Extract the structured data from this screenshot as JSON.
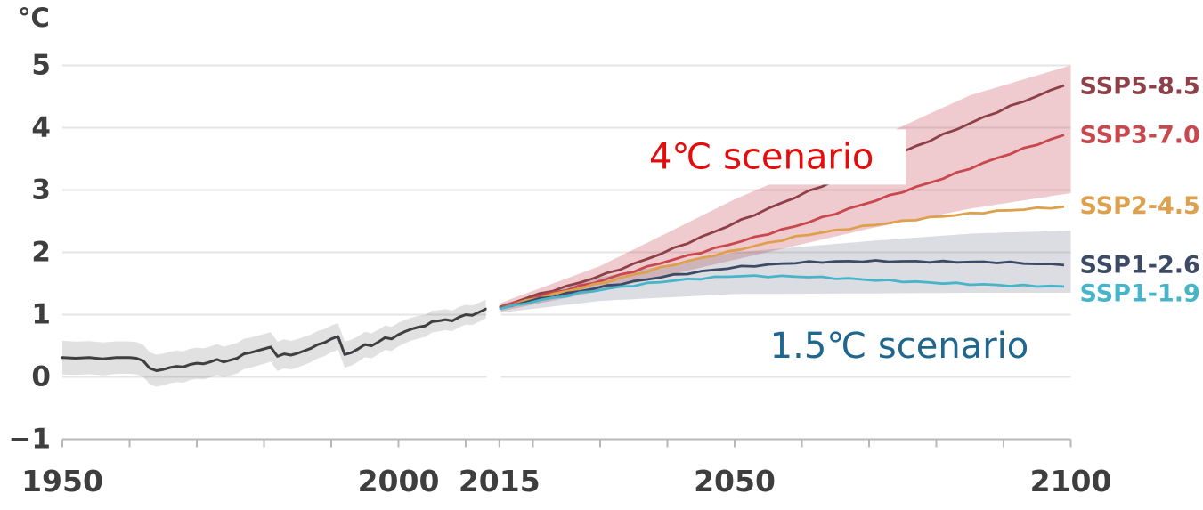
{
  "chart_data": {
    "type": "line",
    "title": "",
    "unit_label": "°C",
    "xlabel": "",
    "ylabel": "°C",
    "legend_position": "right-of-lines",
    "grid": "horizontal",
    "x_axis": {
      "min": 1950,
      "max": 2100,
      "tick_step_years": 10,
      "extra_tick_years": [
        2015
      ],
      "labeled_years": [
        1950,
        2000,
        2015,
        2050,
        2100
      ]
    },
    "y_axis": {
      "min": -1,
      "max": 5,
      "ticks": [
        5,
        4,
        3,
        2,
        1,
        0,
        -1
      ]
    },
    "historical": {
      "name": "observed-warming",
      "color": "#3f3f42",
      "band_color": "rgba(70,70,70,0.16)",
      "points": [
        [
          1950,
          0.31
        ],
        [
          1952,
          0.3
        ],
        [
          1954,
          0.31
        ],
        [
          1956,
          0.29
        ],
        [
          1958,
          0.31
        ],
        [
          1960,
          0.31
        ],
        [
          1961,
          0.3
        ],
        [
          1962,
          0.26
        ],
        [
          1963,
          0.14
        ],
        [
          1964,
          0.1
        ],
        [
          1965,
          0.12
        ],
        [
          1966,
          0.15
        ],
        [
          1967,
          0.17
        ],
        [
          1968,
          0.16
        ],
        [
          1969,
          0.2
        ],
        [
          1970,
          0.22
        ],
        [
          1971,
          0.21
        ],
        [
          1972,
          0.24
        ],
        [
          1973,
          0.28
        ],
        [
          1974,
          0.24
        ],
        [
          1975,
          0.27
        ],
        [
          1976,
          0.3
        ],
        [
          1977,
          0.37
        ],
        [
          1978,
          0.39
        ],
        [
          1979,
          0.42
        ],
        [
          1980,
          0.45
        ],
        [
          1981,
          0.48
        ],
        [
          1982,
          0.33
        ],
        [
          1983,
          0.37
        ],
        [
          1984,
          0.35
        ],
        [
          1985,
          0.38
        ],
        [
          1986,
          0.42
        ],
        [
          1987,
          0.46
        ],
        [
          1988,
          0.52
        ],
        [
          1989,
          0.55
        ],
        [
          1990,
          0.61
        ],
        [
          1991,
          0.65
        ],
        [
          1992,
          0.36
        ],
        [
          1993,
          0.39
        ],
        [
          1994,
          0.45
        ],
        [
          1995,
          0.52
        ],
        [
          1996,
          0.5
        ],
        [
          1997,
          0.56
        ],
        [
          1998,
          0.63
        ],
        [
          1999,
          0.61
        ],
        [
          2000,
          0.68
        ],
        [
          2001,
          0.73
        ],
        [
          2002,
          0.77
        ],
        [
          2003,
          0.8
        ],
        [
          2004,
          0.82
        ],
        [
          2005,
          0.89
        ],
        [
          2006,
          0.9
        ],
        [
          2007,
          0.92
        ],
        [
          2008,
          0.9
        ],
        [
          2009,
          0.96
        ],
        [
          2010,
          1.0
        ],
        [
          2011,
          0.99
        ],
        [
          2012,
          1.04
        ],
        [
          2013,
          1.09
        ]
      ],
      "band_halfwidth": [
        [
          1950,
          0.27
        ],
        [
          1980,
          0.24
        ],
        [
          2000,
          0.19
        ],
        [
          2013,
          0.15
        ]
      ]
    },
    "scenarios": [
      {
        "label": "SSP5-8.5",
        "color": "#8d4048",
        "label_dy": 4,
        "points": [
          [
            2015,
            1.12
          ],
          [
            2020,
            1.3
          ],
          [
            2025,
            1.45
          ],
          [
            2030,
            1.62
          ],
          [
            2035,
            1.81
          ],
          [
            2040,
            2.02
          ],
          [
            2045,
            2.24
          ],
          [
            2050,
            2.47
          ],
          [
            2060,
            2.93
          ],
          [
            2070,
            3.38
          ],
          [
            2080,
            3.84
          ],
          [
            2090,
            4.3
          ],
          [
            2100,
            4.72
          ]
        ]
      },
      {
        "label": "SSP3-7.0",
        "color": "#c8484e",
        "label_dy": 3,
        "points": [
          [
            2015,
            1.11
          ],
          [
            2020,
            1.27
          ],
          [
            2025,
            1.4
          ],
          [
            2030,
            1.54
          ],
          [
            2035,
            1.7
          ],
          [
            2040,
            1.86
          ],
          [
            2045,
            2.0
          ],
          [
            2050,
            2.15
          ],
          [
            2060,
            2.45
          ],
          [
            2070,
            2.8
          ],
          [
            2080,
            3.15
          ],
          [
            2090,
            3.55
          ],
          [
            2100,
            3.92
          ]
        ]
      },
      {
        "label": "SSP2-4.5",
        "color": "#dda14e",
        "label_dy": 0,
        "points": [
          [
            2015,
            1.1
          ],
          [
            2020,
            1.25
          ],
          [
            2030,
            1.5
          ],
          [
            2040,
            1.78
          ],
          [
            2050,
            2.03
          ],
          [
            2060,
            2.27
          ],
          [
            2070,
            2.43
          ],
          [
            2080,
            2.57
          ],
          [
            2090,
            2.67
          ],
          [
            2100,
            2.74
          ]
        ]
      },
      {
        "label": "SSP1-2.6",
        "color": "#3c4a66",
        "label_dy": 0,
        "points": [
          [
            2015,
            1.1
          ],
          [
            2020,
            1.23
          ],
          [
            2030,
            1.44
          ],
          [
            2040,
            1.62
          ],
          [
            2050,
            1.76
          ],
          [
            2060,
            1.84
          ],
          [
            2070,
            1.86
          ],
          [
            2080,
            1.85
          ],
          [
            2090,
            1.84
          ],
          [
            2100,
            1.79
          ]
        ]
      },
      {
        "label": "SSP1-1.9",
        "color": "#48b4c9",
        "label_dy": 8,
        "points": [
          [
            2015,
            1.09
          ],
          [
            2020,
            1.21
          ],
          [
            2030,
            1.4
          ],
          [
            2040,
            1.54
          ],
          [
            2050,
            1.62
          ],
          [
            2060,
            1.61
          ],
          [
            2070,
            1.56
          ],
          [
            2080,
            1.51
          ],
          [
            2090,
            1.47
          ],
          [
            2100,
            1.45
          ]
        ]
      }
    ],
    "bands": [
      {
        "name": "high-emissions-range",
        "fill": "rgba(196,64,79,0.28)",
        "upper": [
          [
            2015,
            1.18
          ],
          [
            2030,
            1.78
          ],
          [
            2050,
            2.85
          ],
          [
            2070,
            3.78
          ],
          [
            2085,
            4.52
          ],
          [
            2100,
            5.0
          ]
        ],
        "lower": [
          [
            2015,
            1.05
          ],
          [
            2030,
            1.38
          ],
          [
            2050,
            1.88
          ],
          [
            2070,
            2.38
          ],
          [
            2085,
            2.7
          ],
          [
            2100,
            2.95
          ]
        ]
      },
      {
        "name": "low-emissions-range",
        "fill": "rgba(90,100,125,0.22)",
        "upper": [
          [
            2015,
            1.16
          ],
          [
            2030,
            1.6
          ],
          [
            2050,
            2.0
          ],
          [
            2070,
            2.18
          ],
          [
            2085,
            2.3
          ],
          [
            2100,
            2.35
          ]
        ],
        "lower": [
          [
            2015,
            1.03
          ],
          [
            2030,
            1.22
          ],
          [
            2050,
            1.33
          ],
          [
            2070,
            1.34
          ],
          [
            2085,
            1.35
          ],
          [
            2100,
            1.35
          ]
        ]
      }
    ],
    "annotations": [
      {
        "text": "4℃ scenario",
        "color": "#e60c0c",
        "bg": "#ffffff",
        "year": 2054,
        "value": 3.53
      },
      {
        "text": "1.5℃ scenario",
        "color": "#1f678e",
        "bg": "#ffffff",
        "year": 2074.5,
        "value": 0.49
      }
    ]
  }
}
